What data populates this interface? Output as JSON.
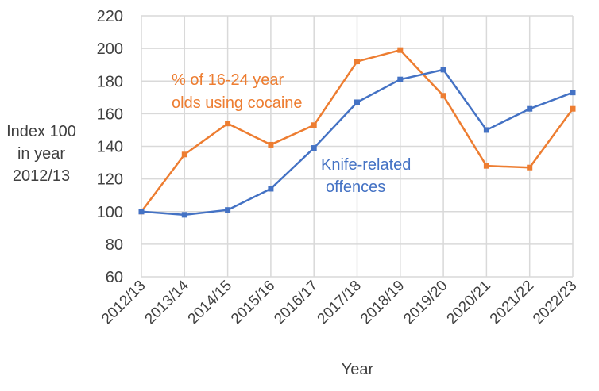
{
  "chart_data": {
    "type": "line",
    "title": "",
    "xlabel": "Year",
    "ylabel_lines": [
      "Index 100",
      "in year",
      "2012/13"
    ],
    "ylim": [
      60,
      220
    ],
    "yticks": [
      60,
      80,
      100,
      120,
      140,
      160,
      180,
      200,
      220
    ],
    "grid": true,
    "categories": [
      "2012/13",
      "2013/14",
      "2014/15",
      "2015/16",
      "2016/17",
      "2017/18",
      "2018/19",
      "2019/20",
      "2020/21",
      "2021/22",
      "2022/23"
    ],
    "series": [
      {
        "name": "% of 16-24 year olds using cocaine",
        "label_lines": [
          "% of 16-24 year",
          "olds using cocaine"
        ],
        "color": "#ED7D31",
        "values": [
          100,
          135,
          154,
          141,
          153,
          192,
          199,
          171,
          128,
          127,
          163
        ]
      },
      {
        "name": "Knife-related offences",
        "label_lines": [
          "Knife-related",
          "offences"
        ],
        "color": "#4472C4",
        "values": [
          100,
          98,
          101,
          114,
          139,
          167,
          181,
          187,
          150,
          163,
          173
        ]
      }
    ]
  }
}
